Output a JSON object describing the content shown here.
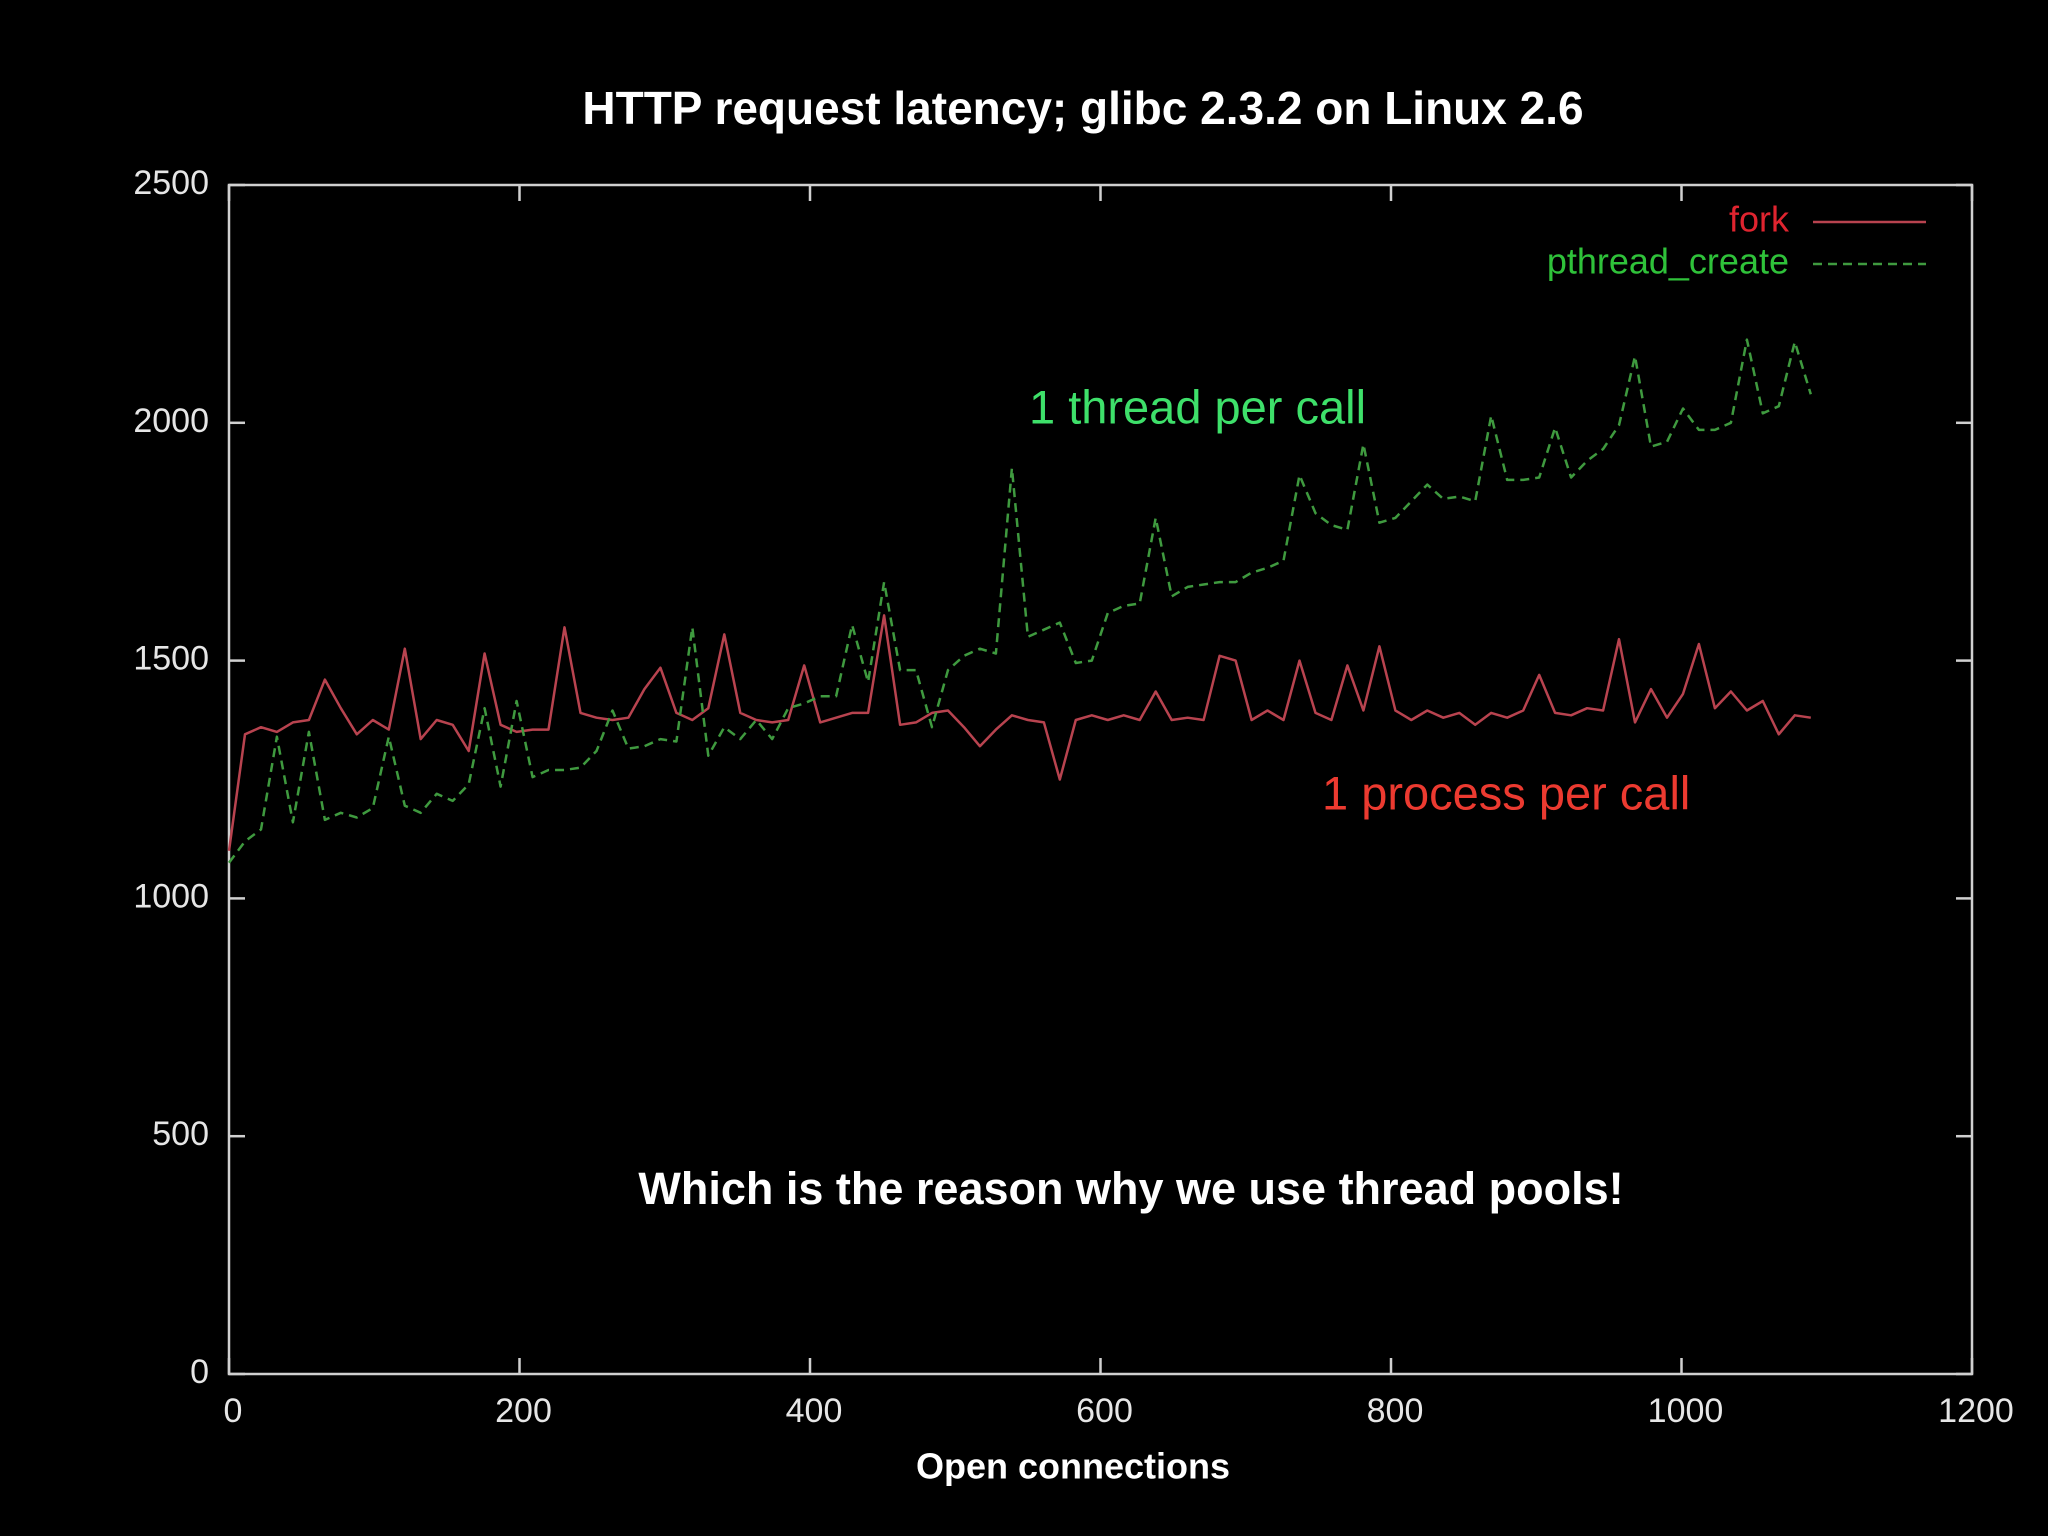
{
  "chart_data": {
    "type": "line",
    "title": "HTTP request latency; glibc 2.3.2 on Linux 2.6",
    "xlabel": "Open connections",
    "x": [
      0,
      11,
      22,
      33,
      44,
      55,
      66,
      77,
      88,
      99,
      110,
      121,
      132,
      143,
      154,
      165,
      176,
      187,
      198,
      209,
      220,
      231,
      242,
      253,
      264,
      275,
      286,
      297,
      308,
      319,
      330,
      341,
      352,
      363,
      374,
      385,
      396,
      407,
      418,
      429,
      440,
      451,
      462,
      473,
      484,
      495,
      506,
      517,
      528,
      539,
      550,
      561,
      572,
      583,
      594,
      605,
      616,
      627,
      638,
      649,
      660,
      671,
      682,
      693,
      704,
      715,
      726,
      737,
      748,
      759,
      770,
      781,
      792,
      803,
      814,
      825,
      836,
      847,
      858,
      869,
      880,
      891,
      902,
      913,
      924,
      935,
      946,
      957,
      968,
      979,
      990,
      1001,
      1012,
      1023,
      1034,
      1045,
      1056,
      1067,
      1078,
      1089
    ],
    "series": [
      {
        "name": "fork",
        "color": "#b8434f",
        "legend_color": "#e0242f",
        "dashed": false,
        "values": [
          1100,
          1345,
          1360,
          1350,
          1370,
          1375,
          1460,
          1400,
          1345,
          1375,
          1355,
          1525,
          1335,
          1375,
          1365,
          1310,
          1515,
          1365,
          1350,
          1355,
          1355,
          1570,
          1390,
          1380,
          1375,
          1380,
          1440,
          1485,
          1390,
          1375,
          1400,
          1555,
          1390,
          1375,
          1370,
          1375,
          1490,
          1370,
          1380,
          1390,
          1390,
          1595,
          1365,
          1370,
          1390,
          1395,
          1360,
          1320,
          1355,
          1385,
          1375,
          1370,
          1250,
          1375,
          1385,
          1375,
          1385,
          1375,
          1435,
          1375,
          1380,
          1375,
          1510,
          1500,
          1375,
          1395,
          1375,
          1500,
          1390,
          1375,
          1490,
          1395,
          1530,
          1395,
          1375,
          1395,
          1380,
          1390,
          1365,
          1390,
          1380,
          1395,
          1470,
          1390,
          1385,
          1400,
          1395,
          1545,
          1370,
          1440,
          1380,
          1430,
          1535,
          1400,
          1435,
          1395,
          1415,
          1345,
          1385,
          1380
        ]
      },
      {
        "name": "pthread_create",
        "color": "#3f9a3f",
        "legend_color": "#2fc23a",
        "dashed": true,
        "values": [
          1075,
          1120,
          1145,
          1340,
          1160,
          1350,
          1165,
          1180,
          1170,
          1190,
          1340,
          1195,
          1180,
          1220,
          1205,
          1240,
          1400,
          1235,
          1415,
          1255,
          1270,
          1270,
          1275,
          1310,
          1395,
          1315,
          1320,
          1335,
          1330,
          1570,
          1300,
          1360,
          1335,
          1375,
          1335,
          1400,
          1410,
          1425,
          1425,
          1575,
          1455,
          1665,
          1480,
          1480,
          1360,
          1480,
          1510,
          1525,
          1515,
          1905,
          1550,
          1565,
          1580,
          1495,
          1500,
          1600,
          1615,
          1620,
          1800,
          1635,
          1655,
          1660,
          1665,
          1665,
          1685,
          1695,
          1710,
          1890,
          1810,
          1785,
          1775,
          1955,
          1790,
          1800,
          1835,
          1870,
          1840,
          1845,
          1835,
          2015,
          1880,
          1880,
          1885,
          1990,
          1885,
          1920,
          1945,
          1995,
          2140,
          1950,
          1960,
          2030,
          1985,
          1985,
          2000,
          2175,
          2020,
          2035,
          2170,
          2060
        ]
      }
    ],
    "xlim": [
      0,
      1200
    ],
    "xticks": [
      0,
      200,
      400,
      600,
      800,
      1000,
      1200
    ],
    "ylim": [
      0,
      2500
    ],
    "yticks": [
      0,
      500,
      1000,
      1500,
      2000,
      2500
    ],
    "legend": "upper right",
    "annotations": [
      {
        "text": "1 thread per call",
        "color": "#3ee06a"
      },
      {
        "text": "1 process per call",
        "color": "#ec3a30"
      },
      {
        "text": "Which is the reason why we use thread pools!",
        "color": "#ffffff"
      }
    ]
  }
}
